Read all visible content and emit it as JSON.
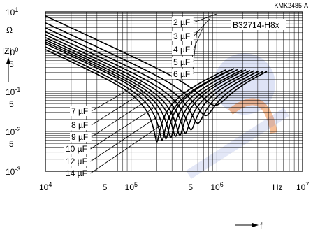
{
  "chart_data": {
    "type": "line",
    "doc_id": "KMK2485-A",
    "part_number": "B32714-H8x",
    "ylabel": "|Z|",
    "xlabel": "f",
    "y_unit": "Ω",
    "x_unit": "Hz",
    "xscale": "log",
    "yscale": "log",
    "xlim": [
      10000,
      10000000
    ],
    "ylim": [
      0.001,
      10
    ],
    "grid": true,
    "x_ticks": [
      {
        "value": 10000,
        "base": "10",
        "exp": "4"
      },
      {
        "value": 50000,
        "base": "5",
        "exp": ""
      },
      {
        "value": 100000,
        "base": "10",
        "exp": "5"
      },
      {
        "value": 500000,
        "base": "5",
        "exp": ""
      },
      {
        "value": 1000000,
        "base": "10",
        "exp": "6"
      },
      {
        "value": 10000000,
        "base": "10",
        "exp": "7"
      }
    ],
    "y_ticks": [
      {
        "value": 10,
        "base": "10",
        "exp": "1"
      },
      {
        "value": 1,
        "base": "10",
        "exp": "0"
      },
      {
        "value": 0.5,
        "base": "5",
        "exp": ""
      },
      {
        "value": 0.1,
        "base": "10",
        "exp": "-1"
      },
      {
        "value": 0.05,
        "base": "5",
        "exp": ""
      },
      {
        "value": 0.01,
        "base": "10",
        "exp": "-2"
      },
      {
        "value": 0.005,
        "base": "5",
        "exp": ""
      },
      {
        "value": 0.001,
        "base": "10",
        "exp": "-3"
      }
    ],
    "series": [
      {
        "name": "2 µF",
        "C_uF": 2,
        "f_res": 950000,
        "z_min": 0.045
      },
      {
        "name": "3 µF",
        "C_uF": 3,
        "f_res": 740000,
        "z_min": 0.025
      },
      {
        "name": "4 µF",
        "C_uF": 4,
        "f_res": 600000,
        "z_min": 0.016
      },
      {
        "name": "5 µF",
        "C_uF": 5,
        "f_res": 500000,
        "z_min": 0.011
      },
      {
        "name": "6 µF",
        "C_uF": 6,
        "f_res": 430000,
        "z_min": 0.009
      },
      {
        "name": "7 µF",
        "C_uF": 7,
        "f_res": 370000,
        "z_min": 0.008
      },
      {
        "name": "8 µF",
        "C_uF": 8,
        "f_res": 330000,
        "z_min": 0.0075
      },
      {
        "name": "9 µF",
        "C_uF": 9,
        "f_res": 290000,
        "z_min": 0.007
      },
      {
        "name": "10 µF",
        "C_uF": 10,
        "f_res": 255000,
        "z_min": 0.0065
      },
      {
        "name": "12 µF",
        "C_uF": 12,
        "f_res": 230000,
        "z_min": 0.006
      },
      {
        "name": "14 µF",
        "C_uF": 14,
        "f_res": 200000,
        "z_min": 0.0055
      }
    ]
  }
}
